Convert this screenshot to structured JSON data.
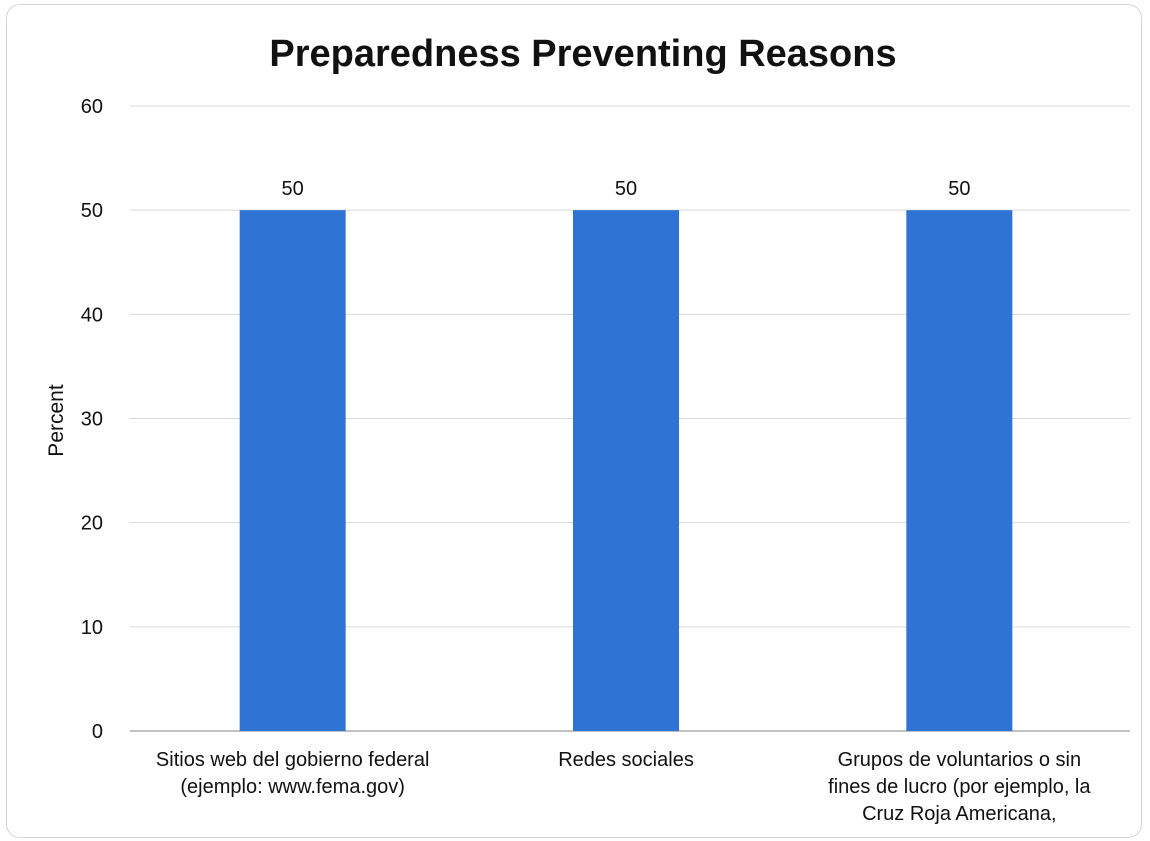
{
  "chart_data": {
    "type": "bar",
    "title": "Preparedness Preventing Reasons",
    "xlabel": "",
    "ylabel": "Percent",
    "ylim": [
      0,
      60
    ],
    "yticks": [
      0,
      10,
      20,
      30,
      40,
      50,
      60
    ],
    "grid": true,
    "categories": [
      [
        "Sitios web del gobierno federal",
        "(ejemplo: www.fema.gov)"
      ],
      [
        "Redes sociales"
      ],
      [
        "Grupos de voluntarios o sin",
        "fines de lucro (por ejemplo, la",
        "Cruz Roja Americana,"
      ]
    ],
    "values": [
      50,
      50,
      50
    ],
    "data_labels": [
      "50",
      "50",
      "50"
    ],
    "bar_color": "#2f73d4"
  }
}
